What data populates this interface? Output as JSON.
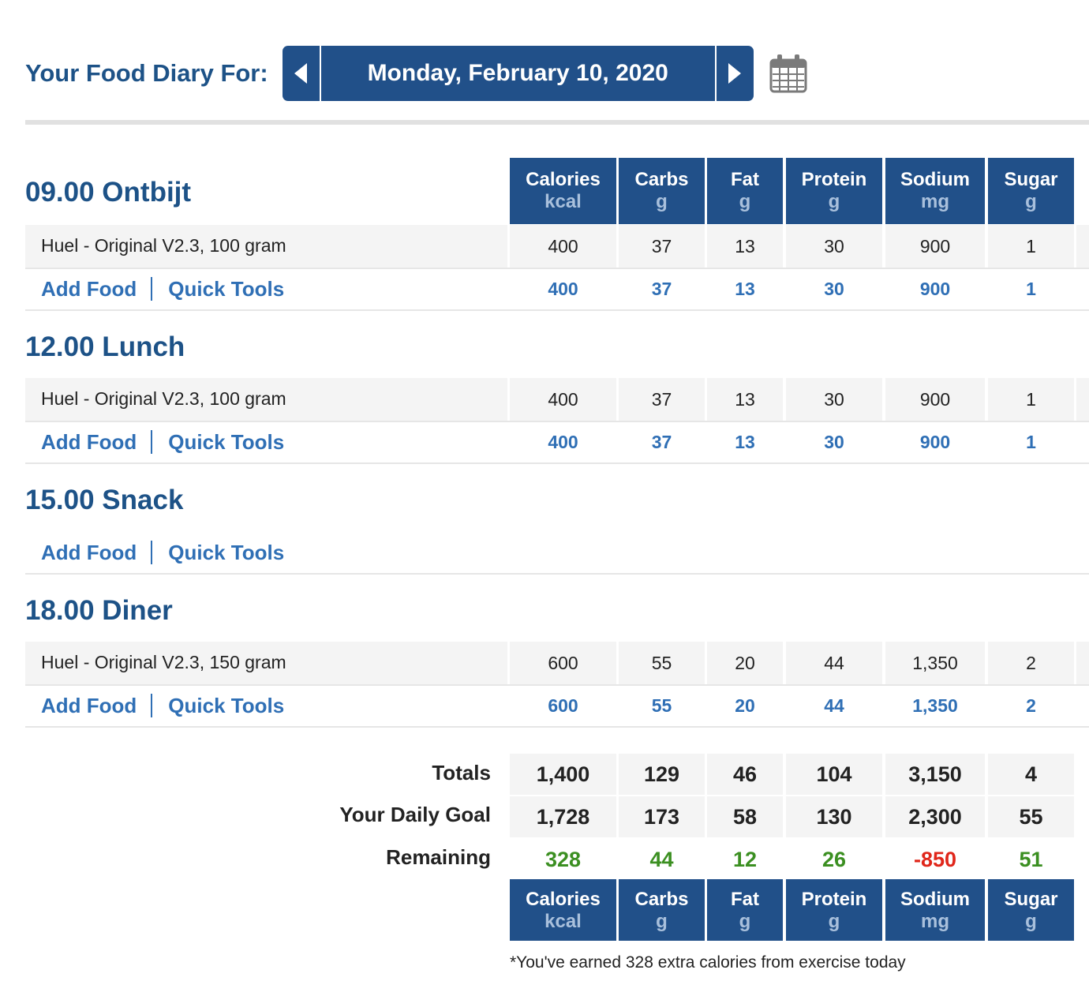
{
  "header": {
    "label": "Your Food Diary For:",
    "date": "Monday, February 10, 2020",
    "prev_icon": "chevron-left-icon",
    "next_icon": "chevron-right-icon",
    "calendar_icon": "calendar-icon"
  },
  "columns": [
    {
      "name": "Calories",
      "unit": "kcal"
    },
    {
      "name": "Carbs",
      "unit": "g"
    },
    {
      "name": "Fat",
      "unit": "g"
    },
    {
      "name": "Protein",
      "unit": "g"
    },
    {
      "name": "Sodium",
      "unit": "mg"
    },
    {
      "name": "Sugar",
      "unit": "g"
    }
  ],
  "actions": {
    "add_food": "Add Food",
    "quick_tools": "Quick Tools"
  },
  "meals": [
    {
      "title": "09.00 Ontbijt",
      "foods": [
        {
          "name": "Huel - Original V2.3, 100 gram",
          "values": [
            "400",
            "37",
            "13",
            "30",
            "900",
            "1"
          ]
        }
      ],
      "totals": [
        "400",
        "37",
        "13",
        "30",
        "900",
        "1"
      ]
    },
    {
      "title": "12.00 Lunch",
      "foods": [
        {
          "name": "Huel - Original V2.3, 100 gram",
          "values": [
            "400",
            "37",
            "13",
            "30",
            "900",
            "1"
          ]
        }
      ],
      "totals": [
        "400",
        "37",
        "13",
        "30",
        "900",
        "1"
      ]
    },
    {
      "title": "15.00 Snack",
      "foods": [],
      "totals": []
    },
    {
      "title": "18.00 Diner",
      "foods": [
        {
          "name": "Huel - Original V2.3, 150 gram",
          "values": [
            "600",
            "55",
            "20",
            "44",
            "1,350",
            "2"
          ]
        }
      ],
      "totals": [
        "600",
        "55",
        "20",
        "44",
        "1,350",
        "2"
      ]
    }
  ],
  "summary": {
    "totals_label": "Totals",
    "totals": [
      "1,400",
      "129",
      "46",
      "104",
      "3,150",
      "4"
    ],
    "goal_label": "Your Daily Goal",
    "goal": [
      "1,728",
      "173",
      "58",
      "130",
      "2,300",
      "55"
    ],
    "remaining_label": "Remaining",
    "remaining": [
      "328",
      "44",
      "12",
      "26",
      "-850",
      "51"
    ]
  },
  "footnote": "*You've earned 328 extra calories from exercise today",
  "colors": {
    "brand_blue": "#215089",
    "link_blue": "#2f6fb5",
    "positive": "#3b8f21",
    "negative": "#e0261a"
  }
}
